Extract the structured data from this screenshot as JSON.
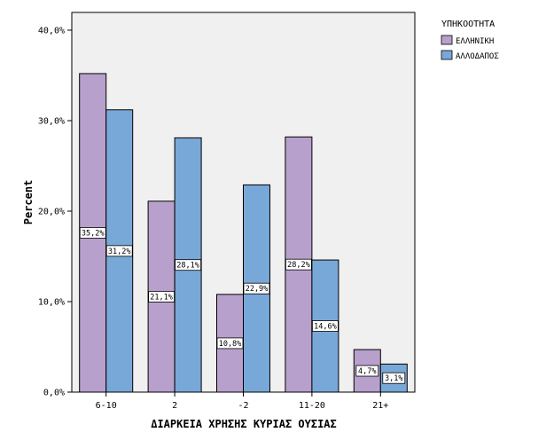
{
  "chart_data": {
    "type": "bar",
    "title": "",
    "xlabel": "ΔΙΑΡΚΕΙΑ ΧΡΗΣΗΣ ΚΥΡΙΑΣ ΟΥΣΙΑΣ",
    "ylabel": "Percent",
    "ylim": [
      0,
      40
    ],
    "yticks": [
      "0,0%",
      "10,0%",
      "20,0%",
      "30,0%",
      "40,0%"
    ],
    "categories": [
      "6-10",
      "2",
      "-2",
      "11-20",
      "21+"
    ],
    "series": [
      {
        "name": "ΕΛΛΗΝΙΚΗ",
        "color": "#B8A0CC",
        "values": [
          35.2,
          21.1,
          10.8,
          28.2,
          4.7
        ],
        "labels": [
          "35,2%",
          "21,1%",
          "10,8%",
          "28,2%",
          "4,7%"
        ]
      },
      {
        "name": "ΑΛΛΟΔΑΠΟΣ",
        "color": "#78A8D8",
        "values": [
          31.2,
          28.1,
          22.9,
          14.6,
          3.1
        ],
        "labels": [
          "31,2%",
          "28,1%",
          "22,9%",
          "14,6%",
          "3,1%"
        ]
      }
    ],
    "legend": {
      "title": "ΥΠΗΚΟΟΤΗΤΑ",
      "position": "right"
    },
    "plot_background": "#F0F0F0",
    "grid": false
  }
}
